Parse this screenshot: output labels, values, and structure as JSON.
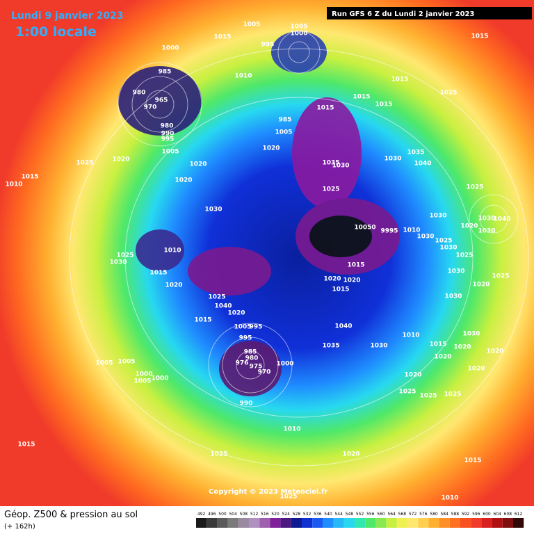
{
  "header": {
    "date": "Lundi 9 janvier 2023",
    "local_time": "1:00 locale",
    "run": "Run GFS 6 Z du Lundi 2 janvier 2023"
  },
  "map": {
    "copyright": "Copyright © 2023 Meteociel.fr",
    "pressure_labels": [
      1015,
      1005,
      1005,
      1000,
      995,
      1015,
      1000,
      985,
      980,
      965,
      970,
      980,
      990,
      995,
      1010,
      1015,
      1015,
      1015,
      1025,
      1015,
      985,
      1005,
      1020,
      1005,
      1020,
      1020,
      1025,
      1015,
      1010,
      1020,
      1035,
      1030,
      1030,
      1035,
      1040,
      1025,
      1025,
      1030,
      1030,
      1020,
      1030,
      1040,
      1030,
      10050,
      9995,
      1010,
      1030,
      1025,
      1030,
      1025,
      1025,
      1030,
      1010,
      1015,
      1020,
      1015,
      1030,
      1025,
      1020,
      1020,
      1015,
      1020,
      1030,
      1025,
      1040,
      1020,
      1015,
      1005,
      995,
      1040,
      995,
      1010,
      1030,
      1015,
      1035,
      1030,
      1020,
      1020,
      1020,
      985,
      980,
      975,
      970,
      976,
      1000,
      1005,
      1005,
      1020,
      1000,
      1005,
      1000,
      1020,
      990,
      1025,
      1025,
      1025,
      1010,
      1015,
      1025,
      1020,
      1015,
      1025,
      1010
    ]
  },
  "footer": {
    "title": "Géop. Z500 & pression au sol",
    "lead": "(+ 162h)"
  },
  "legend": {
    "levels": [
      492,
      496,
      500,
      504,
      508,
      512,
      516,
      520,
      524,
      528,
      532,
      536,
      540,
      544,
      548,
      552,
      556,
      560,
      564,
      568,
      572,
      576,
      580,
      584,
      588,
      592,
      596,
      600,
      604,
      608,
      612
    ]
  }
}
